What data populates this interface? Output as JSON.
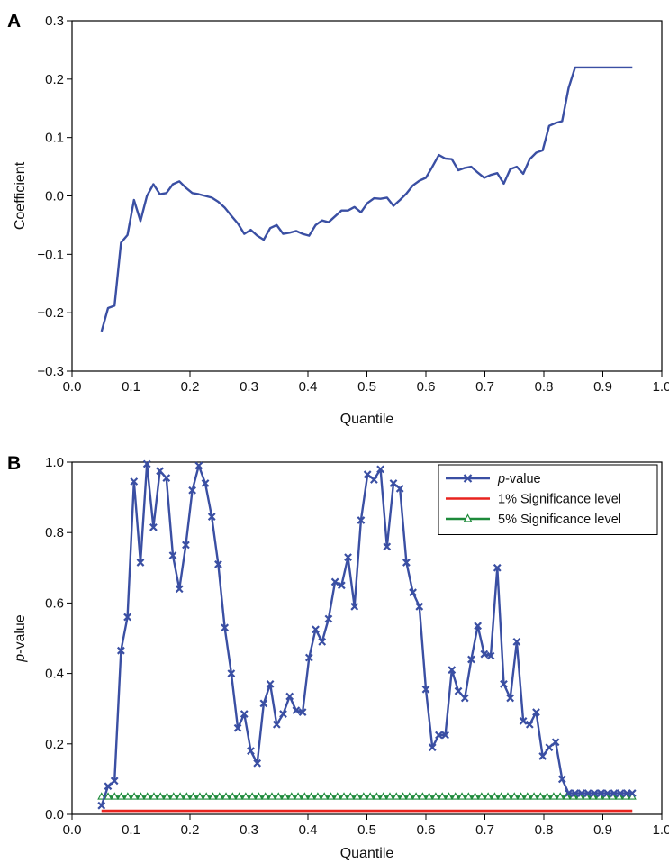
{
  "chart_data": [
    {
      "type": "line",
      "panel_label": "A",
      "title": "",
      "xlabel": "Quantile",
      "ylabel": "Coefficient",
      "xlim": [
        0.0,
        1.0
      ],
      "ylim": [
        -0.3,
        0.3
      ],
      "xticks": [
        "0.0",
        "0.1",
        "0.2",
        "0.3",
        "0.4",
        "0.5",
        "0.6",
        "0.7",
        "0.8",
        "0.9",
        "1.0"
      ],
      "yticks": [
        "−0.3",
        "−0.2",
        "−0.1",
        "0.0",
        "0.1",
        "0.2",
        "0.3"
      ],
      "grid": false,
      "colors": {
        "line": "#3a4fa3"
      },
      "series": [
        {
          "name": "",
          "x": [
            0.05,
            0.061,
            0.072,
            0.083,
            0.094,
            0.105,
            0.116,
            0.127,
            0.138,
            0.149,
            0.16,
            0.171,
            0.182,
            0.193,
            0.204,
            0.215,
            0.226,
            0.237,
            0.248,
            0.259,
            0.27,
            0.281,
            0.292,
            0.303,
            0.314,
            0.325,
            0.336,
            0.347,
            0.358,
            0.369,
            0.38,
            0.391,
            0.402,
            0.413,
            0.424,
            0.435,
            0.446,
            0.457,
            0.468,
            0.479,
            0.49,
            0.501,
            0.512,
            0.523,
            0.534,
            0.545,
            0.556,
            0.567,
            0.578,
            0.589,
            0.6,
            0.611,
            0.622,
            0.633,
            0.644,
            0.655,
            0.666,
            0.677,
            0.688,
            0.699,
            0.71,
            0.721,
            0.732,
            0.743,
            0.754,
            0.765,
            0.776,
            0.787,
            0.798,
            0.809,
            0.82,
            0.831,
            0.842,
            0.853,
            0.864,
            0.875,
            0.886,
            0.897,
            0.908,
            0.919,
            0.93,
            0.941,
            0.95
          ],
          "values": [
            -0.232,
            -0.192,
            -0.188,
            -0.08,
            -0.067,
            -0.007,
            -0.043,
            0.0,
            0.02,
            0.003,
            0.005,
            0.02,
            0.025,
            0.014,
            0.005,
            0.003,
            0.0,
            -0.003,
            -0.01,
            -0.02,
            -0.034,
            -0.047,
            -0.065,
            -0.058,
            -0.068,
            -0.075,
            -0.055,
            -0.05,
            -0.065,
            -0.063,
            -0.06,
            -0.065,
            -0.068,
            -0.05,
            -0.042,
            -0.045,
            -0.035,
            -0.025,
            -0.025,
            -0.019,
            -0.028,
            -0.012,
            -0.004,
            -0.005,
            -0.003,
            -0.017,
            -0.007,
            0.004,
            0.018,
            0.026,
            0.031,
            0.05,
            0.07,
            0.064,
            0.063,
            0.044,
            0.048,
            0.05,
            0.04,
            0.031,
            0.036,
            0.039,
            0.021,
            0.046,
            0.05,
            0.038,
            0.063,
            0.074,
            0.078,
            0.12,
            0.125,
            0.128,
            0.185,
            0.22,
            0.22,
            0.22,
            0.22,
            0.22,
            0.22,
            0.22,
            0.22,
            0.22,
            0.22
          ]
        }
      ]
    },
    {
      "type": "line",
      "panel_label": "B",
      "title": "",
      "xlabel": "Quantile",
      "ylabel_italic": "p",
      "ylabel_rest": "-value",
      "xlim": [
        0.0,
        1.0
      ],
      "ylim": [
        0.0,
        1.0
      ],
      "xticks": [
        "0.0",
        "0.1",
        "0.2",
        "0.3",
        "0.4",
        "0.5",
        "0.6",
        "0.7",
        "0.8",
        "0.9",
        "1.0"
      ],
      "yticks": [
        "0.0",
        "0.2",
        "0.4",
        "0.6",
        "0.8",
        "1.0"
      ],
      "grid": false,
      "legend_position": "top-right",
      "legend": [
        {
          "italic": "p",
          "rest": "-value",
          "color": "#3a4fa3",
          "marker": "x"
        },
        {
          "italic": "",
          "rest": "1% Significance level",
          "color": "#e8231f",
          "marker": "none"
        },
        {
          "italic": "",
          "rest": "5% Significance level",
          "color": "#1d8a3a",
          "marker": "triangle"
        }
      ],
      "series": [
        {
          "name": "p-value",
          "color": "#3a4fa3",
          "marker": "x",
          "x": [
            0.05,
            0.061,
            0.072,
            0.083,
            0.094,
            0.105,
            0.116,
            0.127,
            0.138,
            0.149,
            0.16,
            0.171,
            0.182,
            0.193,
            0.204,
            0.215,
            0.226,
            0.237,
            0.248,
            0.259,
            0.27,
            0.281,
            0.292,
            0.303,
            0.314,
            0.325,
            0.336,
            0.347,
            0.358,
            0.369,
            0.38,
            0.391,
            0.402,
            0.413,
            0.424,
            0.435,
            0.446,
            0.457,
            0.468,
            0.479,
            0.49,
            0.501,
            0.512,
            0.523,
            0.534,
            0.545,
            0.556,
            0.567,
            0.578,
            0.589,
            0.6,
            0.611,
            0.622,
            0.633,
            0.644,
            0.655,
            0.666,
            0.677,
            0.688,
            0.699,
            0.71,
            0.721,
            0.732,
            0.743,
            0.754,
            0.765,
            0.776,
            0.787,
            0.798,
            0.809,
            0.82,
            0.831,
            0.842,
            0.853,
            0.864,
            0.875,
            0.886,
            0.897,
            0.908,
            0.919,
            0.93,
            0.941,
            0.95
          ],
          "values": [
            0.025,
            0.08,
            0.095,
            0.465,
            0.56,
            0.945,
            0.715,
            0.995,
            0.815,
            0.975,
            0.955,
            0.735,
            0.64,
            0.765,
            0.92,
            0.99,
            0.94,
            0.845,
            0.71,
            0.53,
            0.4,
            0.245,
            0.285,
            0.18,
            0.145,
            0.315,
            0.37,
            0.255,
            0.285,
            0.335,
            0.295,
            0.29,
            0.445,
            0.525,
            0.49,
            0.555,
            0.66,
            0.65,
            0.73,
            0.59,
            0.835,
            0.965,
            0.95,
            0.98,
            0.76,
            0.94,
            0.925,
            0.715,
            0.63,
            0.59,
            0.355,
            0.19,
            0.225,
            0.225,
            0.41,
            0.35,
            0.33,
            0.44,
            0.535,
            0.455,
            0.45,
            0.7,
            0.37,
            0.33,
            0.49,
            0.265,
            0.255,
            0.29,
            0.165,
            0.19,
            0.205,
            0.1,
            0.06,
            0.06,
            0.06,
            0.06,
            0.06,
            0.06,
            0.06,
            0.06,
            0.06,
            0.06,
            0.06
          ]
        },
        {
          "name": "1% Significance level",
          "color": "#e8231f",
          "marker": "none",
          "x": [
            0.05,
            0.95
          ],
          "values": [
            0.01,
            0.01
          ]
        },
        {
          "name": "5% Significance level",
          "color": "#1d8a3a",
          "marker": "triangle",
          "x_start": 0.05,
          "x_end": 0.95,
          "value": 0.05,
          "marker_count": 82
        }
      ]
    }
  ]
}
